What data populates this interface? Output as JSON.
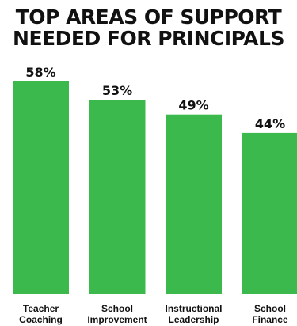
{
  "title_lines": [
    "TOP AREAS OF SUPPORT",
    "NEEDED FOR PRINCIPALS"
  ],
  "colors": {
    "bar": "#3cb94c",
    "text": "#111111",
    "background": "#ffffff"
  },
  "chart_data": {
    "type": "bar",
    "title": "TOP AREAS OF SUPPORT NEEDED FOR PRINCIPALS",
    "categories": [
      [
        "Teacher",
        "Coaching"
      ],
      [
        "School",
        "Improvement"
      ],
      [
        "Instructional",
        "Leadership"
      ],
      [
        "School",
        "Finance"
      ]
    ],
    "values": [
      58,
      53,
      49,
      44
    ],
    "value_labels": [
      "58%",
      "53%",
      "49%",
      "44%"
    ],
    "xlabel": "",
    "ylabel": "",
    "grid": false,
    "legend": "none"
  }
}
